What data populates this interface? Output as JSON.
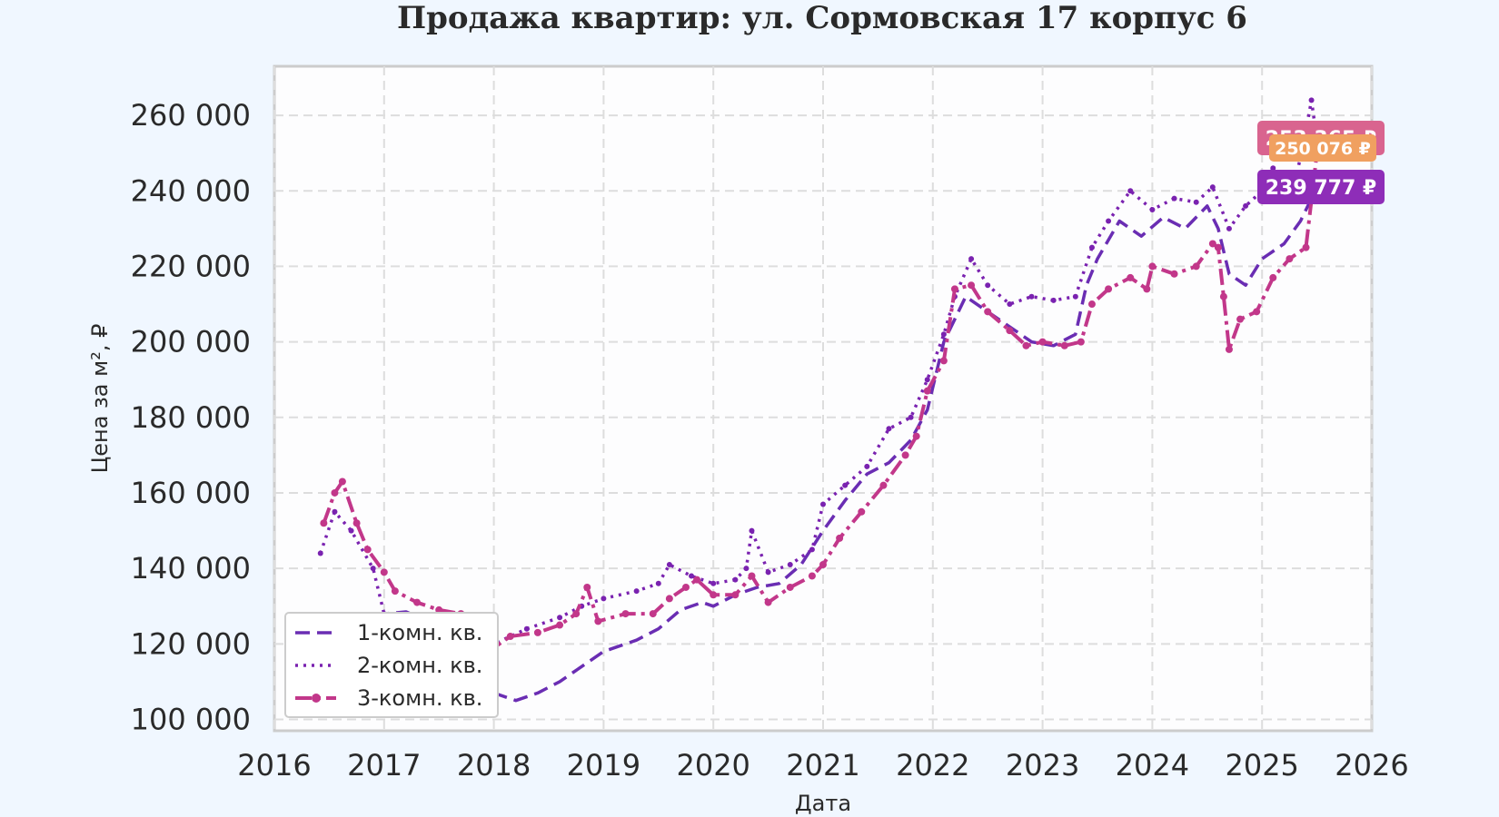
{
  "chart_data": {
    "type": "line",
    "title": "Продажа квартир: ул. Сормовская 17 корпус 6",
    "xlabel": "Дата",
    "ylabel": "Цена за м², ₽",
    "xlim": [
      2016.0,
      2026.0
    ],
    "ylim": [
      97000,
      273000
    ],
    "x_ticks": [
      "2016",
      "2017",
      "2018",
      "2019",
      "2020",
      "2021",
      "2022",
      "2023",
      "2024",
      "2025",
      "2026"
    ],
    "y_ticks": [
      "100 000",
      "120 000",
      "140 000",
      "160 000",
      "180 000",
      "200 000",
      "220 000",
      "240 000",
      "260 000"
    ],
    "grid": true,
    "legend_position": "lower-left",
    "series": [
      {
        "name": "1-комн. кв.",
        "color": "#6a2db3",
        "style": "dashed",
        "points": [
          [
            2016.5,
            120000
          ],
          [
            2016.7,
            118000
          ],
          [
            2016.9,
            122000
          ],
          [
            2017.0,
            128000
          ],
          [
            2017.2,
            128500
          ],
          [
            2017.4,
            126000
          ],
          [
            2017.6,
            120000
          ],
          [
            2017.8,
            112000
          ],
          [
            2018.0,
            107000
          ],
          [
            2018.2,
            105000
          ],
          [
            2018.4,
            107000
          ],
          [
            2018.6,
            110000
          ],
          [
            2018.8,
            114000
          ],
          [
            2019.0,
            118000
          ],
          [
            2019.3,
            121000
          ],
          [
            2019.5,
            124000
          ],
          [
            2019.7,
            129000
          ],
          [
            2019.9,
            131000
          ],
          [
            2020.0,
            130000
          ],
          [
            2020.2,
            133000
          ],
          [
            2020.4,
            135000
          ],
          [
            2020.6,
            136000
          ],
          [
            2020.8,
            141000
          ],
          [
            2021.0,
            150000
          ],
          [
            2021.2,
            158000
          ],
          [
            2021.4,
            165000
          ],
          [
            2021.6,
            168000
          ],
          [
            2021.8,
            174000
          ],
          [
            2021.95,
            182000
          ],
          [
            2022.1,
            200000
          ],
          [
            2022.3,
            212000
          ],
          [
            2022.6,
            206000
          ],
          [
            2022.9,
            200000
          ],
          [
            2023.1,
            199000
          ],
          [
            2023.3,
            202000
          ],
          [
            2023.4,
            215000
          ],
          [
            2023.5,
            222000
          ],
          [
            2023.7,
            232000
          ],
          [
            2023.9,
            228000
          ],
          [
            2024.1,
            233000
          ],
          [
            2024.3,
            230000
          ],
          [
            2024.5,
            236000
          ],
          [
            2024.6,
            230000
          ],
          [
            2024.7,
            218000
          ],
          [
            2024.85,
            215000
          ],
          [
            2025.0,
            222000
          ],
          [
            2025.2,
            226000
          ],
          [
            2025.35,
            232000
          ],
          [
            2025.45,
            238000
          ],
          [
            2025.5,
            239777
          ]
        ]
      },
      {
        "name": "2-комн. кв.",
        "color": "#7a22b0",
        "style": "dotted",
        "points": [
          [
            2016.42,
            144000
          ],
          [
            2016.55,
            155000
          ],
          [
            2016.7,
            150000
          ],
          [
            2016.9,
            140000
          ],
          [
            2017.0,
            128000
          ],
          [
            2017.3,
            127000
          ],
          [
            2017.6,
            125000
          ],
          [
            2017.85,
            121000
          ],
          [
            2018.0,
            120000
          ],
          [
            2018.3,
            124000
          ],
          [
            2018.6,
            127000
          ],
          [
            2018.8,
            130000
          ],
          [
            2019.0,
            132000
          ],
          [
            2019.3,
            134000
          ],
          [
            2019.5,
            136000
          ],
          [
            2019.6,
            141000
          ],
          [
            2019.8,
            138000
          ],
          [
            2020.0,
            136000
          ],
          [
            2020.2,
            137000
          ],
          [
            2020.3,
            140000
          ],
          [
            2020.35,
            150000
          ],
          [
            2020.5,
            139000
          ],
          [
            2020.7,
            141000
          ],
          [
            2020.9,
            145000
          ],
          [
            2021.0,
            157000
          ],
          [
            2021.2,
            162000
          ],
          [
            2021.4,
            167000
          ],
          [
            2021.6,
            177000
          ],
          [
            2021.8,
            180000
          ],
          [
            2021.95,
            190000
          ],
          [
            2022.1,
            202000
          ],
          [
            2022.2,
            212000
          ],
          [
            2022.35,
            222000
          ],
          [
            2022.5,
            215000
          ],
          [
            2022.7,
            210000
          ],
          [
            2022.9,
            212000
          ],
          [
            2023.1,
            211000
          ],
          [
            2023.3,
            212000
          ],
          [
            2023.45,
            225000
          ],
          [
            2023.6,
            232000
          ],
          [
            2023.8,
            240000
          ],
          [
            2024.0,
            235000
          ],
          [
            2024.2,
            238000
          ],
          [
            2024.4,
            237000
          ],
          [
            2024.55,
            241000
          ],
          [
            2024.7,
            230000
          ],
          [
            2024.85,
            236000
          ],
          [
            2025.0,
            240000
          ],
          [
            2025.1,
            246000
          ],
          [
            2025.2,
            238000
          ],
          [
            2025.3,
            242000
          ],
          [
            2025.4,
            256000
          ],
          [
            2025.45,
            264000
          ],
          [
            2025.5,
            253365
          ]
        ]
      },
      {
        "name": "3-комн. кв.",
        "color": "#c2378a",
        "style": "dashdot",
        "points": [
          [
            2016.45,
            152000
          ],
          [
            2016.55,
            160000
          ],
          [
            2016.62,
            163000
          ],
          [
            2016.75,
            152000
          ],
          [
            2016.85,
            145000
          ],
          [
            2017.0,
            139000
          ],
          [
            2017.1,
            134000
          ],
          [
            2017.3,
            131000
          ],
          [
            2017.5,
            129000
          ],
          [
            2017.7,
            128000
          ],
          [
            2017.85,
            124000
          ],
          [
            2018.0,
            119000
          ],
          [
            2018.15,
            122000
          ],
          [
            2018.4,
            123000
          ],
          [
            2018.6,
            125000
          ],
          [
            2018.75,
            128000
          ],
          [
            2018.85,
            135000
          ],
          [
            2018.95,
            126000
          ],
          [
            2019.2,
            128000
          ],
          [
            2019.45,
            128000
          ],
          [
            2019.6,
            132000
          ],
          [
            2019.75,
            135000
          ],
          [
            2019.85,
            137000
          ],
          [
            2020.0,
            133000
          ],
          [
            2020.2,
            133000
          ],
          [
            2020.35,
            138000
          ],
          [
            2020.5,
            131000
          ],
          [
            2020.7,
            135000
          ],
          [
            2020.9,
            138000
          ],
          [
            2021.0,
            141000
          ],
          [
            2021.15,
            148000
          ],
          [
            2021.35,
            155000
          ],
          [
            2021.55,
            162000
          ],
          [
            2021.75,
            170000
          ],
          [
            2021.85,
            175000
          ],
          [
            2021.95,
            187000
          ],
          [
            2022.1,
            195000
          ],
          [
            2022.2,
            214000
          ],
          [
            2022.35,
            215000
          ],
          [
            2022.5,
            208000
          ],
          [
            2022.7,
            203000
          ],
          [
            2022.85,
            199000
          ],
          [
            2023.0,
            200000
          ],
          [
            2023.2,
            199000
          ],
          [
            2023.35,
            200000
          ],
          [
            2023.45,
            210000
          ],
          [
            2023.6,
            214000
          ],
          [
            2023.8,
            217000
          ],
          [
            2023.95,
            214000
          ],
          [
            2024.0,
            220000
          ],
          [
            2024.2,
            218000
          ],
          [
            2024.4,
            220000
          ],
          [
            2024.55,
            226000
          ],
          [
            2024.6,
            225000
          ],
          [
            2024.65,
            212000
          ],
          [
            2024.7,
            198000
          ],
          [
            2024.8,
            206000
          ],
          [
            2024.95,
            208000
          ],
          [
            2025.1,
            217000
          ],
          [
            2025.25,
            222000
          ],
          [
            2025.4,
            225000
          ],
          [
            2025.5,
            250076
          ]
        ]
      }
    ],
    "last_value_labels": [
      {
        "series": "2-комн. кв.",
        "text": "253 365 ₽",
        "value": 253365,
        "color": "#d9648f"
      },
      {
        "series": "3-комн. кв.",
        "text": "250 076 ₽",
        "value": 250076,
        "color": "#f0a060"
      },
      {
        "series": "1-комн. кв.",
        "text": "239 777 ₽",
        "value": 239777,
        "color": "#8e2db8"
      }
    ]
  }
}
